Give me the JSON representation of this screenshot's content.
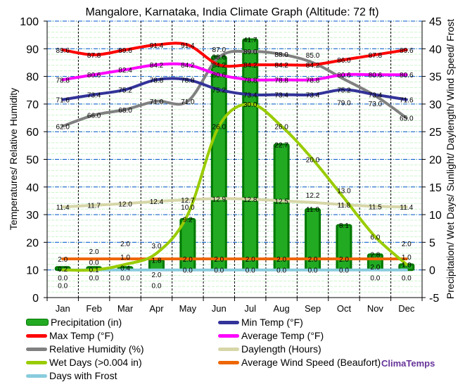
{
  "chart_data": {
    "type": "line",
    "title": "Mangalore, Karnataka, India Climate Graph (Altitude: 72 ft)",
    "ylabel_left": "Temperatures/ Relative Humidity",
    "ylabel_right": "Precipitation/ Wet Days/ Sunlight/ Daylength/ Wind Speed/ Frost",
    "ylim_left": [
      0,
      100
    ],
    "yticks_left": [
      0,
      10,
      20,
      30,
      40,
      50,
      60,
      70,
      80,
      90,
      100
    ],
    "ylim_right": [
      -5,
      45
    ],
    "yticks_right": [
      -5,
      0,
      5,
      10,
      15,
      20,
      25,
      30,
      35,
      40,
      45
    ],
    "categories": [
      "Jan",
      "Feb",
      "Mar",
      "Apr",
      "May",
      "Jun",
      "Jul",
      "Aug",
      "Sep",
      "Oct",
      "Nov",
      "Dec"
    ],
    "series": [
      {
        "name": "Precipitation (in)",
        "type": "bar",
        "axis": "right",
        "color": "#22aa22",
        "values": [
          0.2,
          0.1,
          0.4,
          1.8,
          9.2,
          38.6,
          41.7,
          22.7,
          11.0,
          8.1,
          2.8,
          1.0
        ]
      },
      {
        "name": "Min Temp (°F)",
        "axis": "left",
        "color": "#333399",
        "values": [
          71.6,
          73.4,
          75.2,
          78.8,
          78.8,
          75.2,
          73.4,
          73.4,
          73.4,
          75.2,
          73.4,
          71.6
        ]
      },
      {
        "name": "Max Temp (°F)",
        "axis": "left",
        "color": "#ff0000",
        "values": [
          89.6,
          87.8,
          89.6,
          91.4,
          91.4,
          84.2,
          84.2,
          84.2,
          84.2,
          86.0,
          87.8,
          89.6
        ]
      },
      {
        "name": "Average Temp (°F)",
        "axis": "left",
        "color": "#ff00ff",
        "values": [
          78.8,
          80.6,
          82.4,
          84.2,
          84.2,
          80.6,
          78.8,
          78.8,
          78.8,
          80.6,
          80.6,
          80.6
        ]
      },
      {
        "name": "Relative Humidity (%)",
        "axis": "left",
        "color": "#808080",
        "values": [
          62.0,
          66.0,
          68.0,
          71.0,
          71.0,
          87.0,
          89.0,
          88.0,
          85.0,
          79.0,
          73.0,
          65.0
        ]
      },
      {
        "name": "Daylength (Hours)",
        "axis": "right",
        "color": "#d6d6a8",
        "values": [
          11.4,
          11.7,
          12.0,
          12.4,
          12.7,
          12.9,
          12.8,
          12.5,
          12.2,
          11.8,
          11.5,
          11.4
        ]
      },
      {
        "name": "Wet Days (>0.004 in)",
        "axis": "right",
        "color": "#99cc00",
        "values": [
          0.0,
          0.0,
          1.0,
          3.0,
          10.0,
          26.0,
          30.0,
          26.0,
          20.0,
          13.0,
          6.0,
          1.0
        ]
      },
      {
        "name": "Average Wind Speed (Beaufort)",
        "axis": "right",
        "color": "#ee6600",
        "values": [
          2.0,
          2.0,
          2.0,
          2.0,
          2.0,
          2.0,
          2.0,
          2.0,
          2.0,
          2.0,
          2.0,
          2.0
        ]
      },
      {
        "name": "Days with Frost",
        "axis": "right",
        "color": "#88ccdd",
        "values": [
          0.0,
          0.0,
          0.0,
          0.0,
          0.0,
          0.0,
          0.0,
          0.0,
          0.0,
          0.0,
          0.0,
          0.0
        ]
      }
    ],
    "legend": "bottom",
    "grid": true
  },
  "brand": "ClimaTemps"
}
